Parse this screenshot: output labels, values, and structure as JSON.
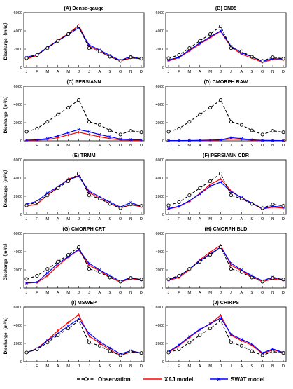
{
  "figure": {
    "ylabel": "Discharge（m³/s）",
    "legend": {
      "placement": "bottom",
      "entries": [
        "Observation",
        "XAJ model",
        "SWAT model"
      ]
    },
    "colors": {
      "observation": "#000000",
      "xaj": "#ff0000",
      "swat": "#0000ff",
      "axis": "#000000"
    }
  },
  "chart_data": [
    {
      "type": "line",
      "title": "(A) Dense-gauge",
      "categories": [
        "J",
        "F",
        "M",
        "A",
        "M",
        "J",
        "J",
        "A",
        "S",
        "O",
        "N",
        "D"
      ],
      "ylim": [
        0,
        6000
      ],
      "yticks": [
        0,
        2000,
        4000,
        6000
      ],
      "series": [
        {
          "name": "Observation",
          "values": [
            1000,
            1350,
            2100,
            2900,
            3650,
            4500,
            2100,
            1750,
            1150,
            700,
            1100,
            950
          ]
        },
        {
          "name": "XAJ model",
          "values": [
            900,
            1300,
            2200,
            2950,
            3700,
            4600,
            2300,
            1800,
            1150,
            700,
            1000,
            950
          ]
        },
        {
          "name": "SWAT model",
          "values": [
            1100,
            1400,
            2150,
            2900,
            3600,
            4350,
            2450,
            1900,
            1300,
            750,
            1200,
            900
          ]
        }
      ]
    },
    {
      "type": "line",
      "title": "(B) CN05",
      "categories": [
        "J",
        "F",
        "M",
        "A",
        "M",
        "J",
        "J",
        "A",
        "S",
        "O",
        "N",
        "D"
      ],
      "ylim": [
        0,
        6000
      ],
      "yticks": [
        0,
        2000,
        4000,
        6000
      ],
      "series": [
        {
          "name": "Observation",
          "values": [
            1000,
            1350,
            2100,
            2900,
            3650,
            4500,
            2100,
            1750,
            1150,
            700,
            1100,
            950
          ]
        },
        {
          "name": "XAJ model",
          "values": [
            700,
            1050,
            1800,
            2550,
            3250,
            3950,
            2200,
            1450,
            1000,
            550,
            850,
            800
          ]
        },
        {
          "name": "SWAT model",
          "values": [
            800,
            1100,
            1900,
            2650,
            3350,
            4000,
            2300,
            1600,
            1150,
            650,
            950,
            900
          ]
        }
      ]
    },
    {
      "type": "line",
      "title": "(C) PERSIANN",
      "categories": [
        "J",
        "F",
        "M",
        "A",
        "M",
        "J",
        "J",
        "A",
        "S",
        "O",
        "N",
        "D"
      ],
      "ylim": [
        0,
        6000
      ],
      "yticks": [
        0,
        2000,
        4000,
        6000
      ],
      "series": [
        {
          "name": "Observation",
          "values": [
            1000,
            1350,
            2100,
            2900,
            3650,
            4500,
            2100,
            1750,
            1150,
            700,
            1100,
            950
          ]
        },
        {
          "name": "XAJ model",
          "values": [
            60,
            80,
            150,
            350,
            650,
            950,
            700,
            450,
            250,
            100,
            80,
            60
          ]
        },
        {
          "name": "SWAT model",
          "values": [
            80,
            120,
            250,
            550,
            900,
            1250,
            1000,
            700,
            450,
            200,
            150,
            100
          ]
        }
      ]
    },
    {
      "type": "line",
      "title": "(D) CMORPH RAW",
      "categories": [
        "J",
        "F",
        "M",
        "A",
        "M",
        "J",
        "J",
        "A",
        "S",
        "O",
        "N",
        "D"
      ],
      "ylim": [
        0,
        6000
      ],
      "yticks": [
        0,
        2000,
        4000,
        6000
      ],
      "series": [
        {
          "name": "Observation",
          "values": [
            1000,
            1350,
            2100,
            2900,
            3650,
            4500,
            2100,
            1750,
            1150,
            700,
            1100,
            950
          ]
        },
        {
          "name": "XAJ model",
          "values": [
            20,
            20,
            30,
            40,
            60,
            90,
            200,
            150,
            80,
            40,
            30,
            20
          ]
        },
        {
          "name": "SWAT model",
          "values": [
            30,
            30,
            40,
            60,
            90,
            120,
            350,
            250,
            120,
            60,
            40,
            30
          ]
        }
      ]
    },
    {
      "type": "line",
      "title": "(E) TRMM",
      "categories": [
        "J",
        "F",
        "M",
        "A",
        "M",
        "J",
        "J",
        "A",
        "S",
        "O",
        "N",
        "D"
      ],
      "ylim": [
        0,
        6000
      ],
      "yticks": [
        0,
        2000,
        4000,
        6000
      ],
      "series": [
        {
          "name": "Observation",
          "values": [
            1000,
            1350,
            2100,
            2900,
            3650,
            4500,
            2100,
            1750,
            1150,
            700,
            1100,
            950
          ]
        },
        {
          "name": "XAJ model",
          "values": [
            900,
            1150,
            2100,
            3000,
            3900,
            4250,
            2400,
            1800,
            1200,
            700,
            1050,
            850
          ]
        },
        {
          "name": "SWAT model",
          "values": [
            1150,
            1450,
            2350,
            3050,
            3800,
            4200,
            2550,
            1950,
            1350,
            800,
            1300,
            900
          ]
        }
      ]
    },
    {
      "type": "line",
      "title": "(F) PERSIANN CDR",
      "categories": [
        "J",
        "F",
        "M",
        "A",
        "M",
        "J",
        "J",
        "A",
        "S",
        "O",
        "N",
        "D"
      ],
      "ylim": [
        0,
        6000
      ],
      "yticks": [
        0,
        2000,
        4000,
        6000
      ],
      "series": [
        {
          "name": "Observation",
          "values": [
            1000,
            1350,
            2100,
            2900,
            3650,
            4500,
            2100,
            1750,
            1150,
            700,
            1100,
            950
          ]
        },
        {
          "name": "XAJ model",
          "values": [
            600,
            850,
            1450,
            2300,
            3300,
            3900,
            2600,
            1800,
            1200,
            600,
            800,
            700
          ]
        },
        {
          "name": "SWAT model",
          "values": [
            650,
            900,
            1500,
            2250,
            3100,
            3550,
            2500,
            1850,
            1250,
            650,
            900,
            800
          ]
        }
      ]
    },
    {
      "type": "line",
      "title": "(G) CMORPH CRT",
      "categories": [
        "J",
        "F",
        "M",
        "A",
        "M",
        "J",
        "J",
        "A",
        "S",
        "O",
        "N",
        "D"
      ],
      "ylim": [
        0,
        6000
      ],
      "yticks": [
        0,
        2000,
        4000,
        6000
      ],
      "series": [
        {
          "name": "Observation",
          "values": [
            1000,
            1350,
            2100,
            2900,
            3650,
            4500,
            2100,
            1750,
            1150,
            700,
            1100,
            950
          ]
        },
        {
          "name": "XAJ model",
          "values": [
            550,
            600,
            1350,
            2450,
            3400,
            4200,
            2500,
            1900,
            1200,
            650,
            1050,
            850
          ]
        },
        {
          "name": "SWAT model",
          "values": [
            550,
            650,
            1650,
            2700,
            3450,
            4250,
            2700,
            2000,
            1350,
            750,
            1150,
            900
          ]
        }
      ]
    },
    {
      "type": "line",
      "title": "(H) CMORPH BLD",
      "categories": [
        "J",
        "F",
        "M",
        "A",
        "M",
        "J",
        "J",
        "A",
        "S",
        "O",
        "N",
        "D"
      ],
      "ylim": [
        0,
        6000
      ],
      "yticks": [
        0,
        2000,
        4000,
        6000
      ],
      "series": [
        {
          "name": "Observation",
          "values": [
            1000,
            1350,
            2100,
            2900,
            3650,
            4500,
            2100,
            1750,
            1150,
            700,
            1100,
            950
          ]
        },
        {
          "name": "XAJ model",
          "values": [
            850,
            1150,
            2000,
            3100,
            3950,
            4700,
            2500,
            1900,
            1250,
            700,
            1000,
            850
          ]
        },
        {
          "name": "SWAT model",
          "values": [
            900,
            1300,
            2100,
            3000,
            3750,
            4500,
            2700,
            2000,
            1350,
            800,
            1200,
            900
          ]
        }
      ]
    },
    {
      "type": "line",
      "title": "(I) MSWEP",
      "categories": [
        "J",
        "F",
        "M",
        "A",
        "M",
        "J",
        "J",
        "A",
        "S",
        "O",
        "N",
        "D"
      ],
      "ylim": [
        0,
        6000
      ],
      "yticks": [
        0,
        2000,
        4000,
        6000
      ],
      "series": [
        {
          "name": "Observation",
          "values": [
            1000,
            1350,
            2100,
            2900,
            3650,
            4500,
            2100,
            1750,
            1150,
            700,
            1100,
            950
          ]
        },
        {
          "name": "XAJ model",
          "values": [
            1000,
            1450,
            2350,
            3400,
            4300,
            5150,
            2800,
            2050,
            1300,
            700,
            1050,
            950
          ]
        },
        {
          "name": "SWAT model",
          "values": [
            1000,
            1400,
            2300,
            3100,
            3900,
            4700,
            3100,
            2200,
            1500,
            850,
            1200,
            950
          ]
        }
      ]
    },
    {
      "type": "line",
      "title": "(J) CHIRPS",
      "categories": [
        "J",
        "F",
        "M",
        "A",
        "M",
        "J",
        "J",
        "A",
        "S",
        "O",
        "N",
        "D"
      ],
      "ylim": [
        0,
        6000
      ],
      "yticks": [
        0,
        2000,
        4000,
        6000
      ],
      "series": [
        {
          "name": "Observation",
          "values": [
            1000,
            1350,
            2100,
            2900,
            3650,
            4500,
            2100,
            1750,
            1150,
            700,
            1100,
            950
          ]
        },
        {
          "name": "XAJ model",
          "values": [
            1000,
            1750,
            2650,
            3500,
            4150,
            5100,
            2900,
            2300,
            1800,
            850,
            1300,
            1000
          ]
        },
        {
          "name": "SWAT model",
          "values": [
            1100,
            1850,
            2750,
            3550,
            4150,
            4800,
            3000,
            2450,
            1950,
            950,
            1400,
            1000
          ]
        }
      ]
    }
  ]
}
